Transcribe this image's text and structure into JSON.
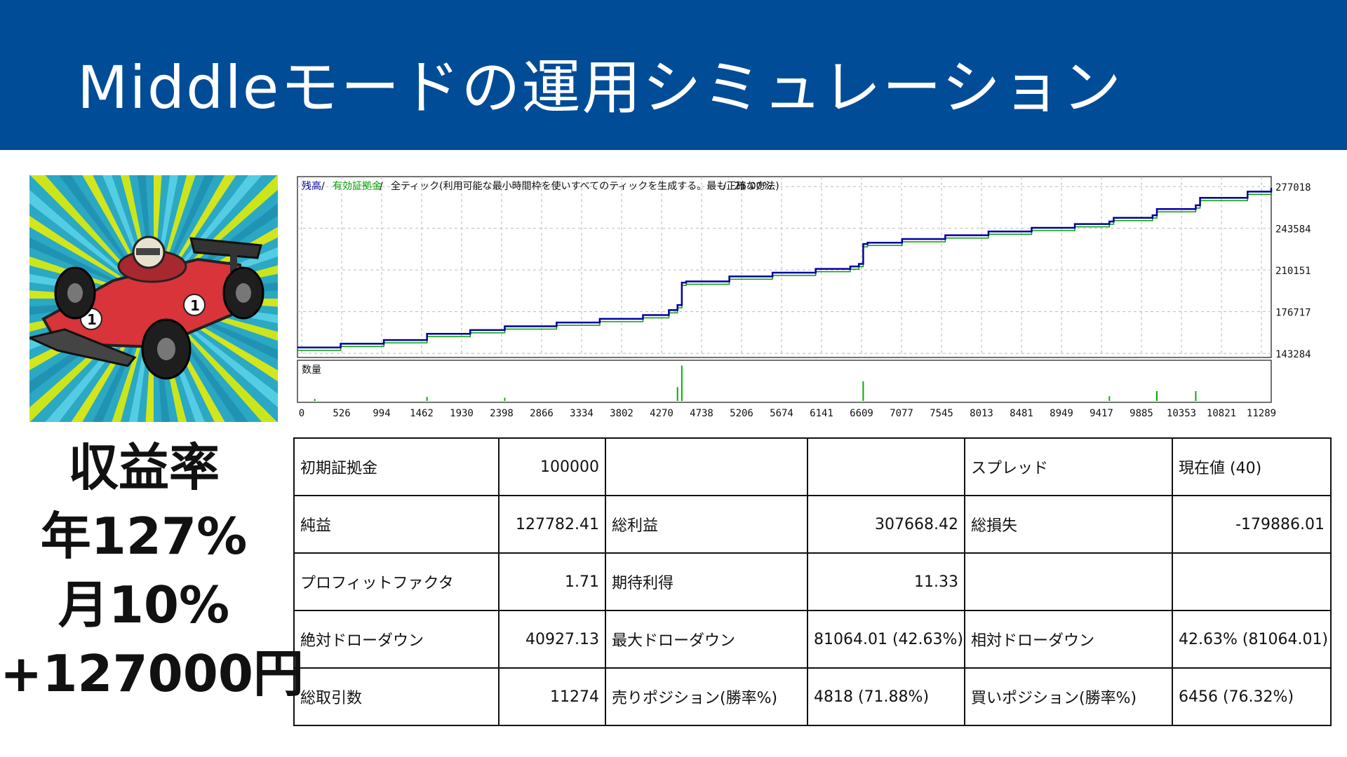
{
  "header": {
    "title": "Middleモードの運用シミュレーション"
  },
  "summary": {
    "line1": "収益率",
    "line2": "年127%",
    "line3": "月10%",
    "line4": "+127000円"
  },
  "colors": {
    "header_bg": "#004c97",
    "balance_line": "#0000a0",
    "equity_line": "#00b000",
    "volume_bar": "#00b000"
  },
  "icons": {
    "illustration": "race-car-driver-illustration"
  },
  "chart_data": {
    "type": "line",
    "legend": [
      "残高",
      "有効証拠金",
      "全ティック(利用可能な最小時間枠を使いすべてのティックを生成する。最も正確な方法)",
      "25.00%"
    ],
    "x_ticks": [
      "0",
      "526",
      "994",
      "1462",
      "1930",
      "2398",
      "2866",
      "3334",
      "3802",
      "4270",
      "4738",
      "5206",
      "5674",
      "6141",
      "6609",
      "7077",
      "7545",
      "8013",
      "8481",
      "8949",
      "9417",
      "9885",
      "10353",
      "10821",
      "11289"
    ],
    "y_ticks": [
      "277018",
      "243584",
      "210151",
      "176717",
      "143284"
    ],
    "ylim": [
      140000,
      285000
    ],
    "xlim": [
      0,
      11274
    ],
    "volume_label": "数量",
    "series": [
      {
        "name": "残高",
        "x": [
          0,
          500,
          1000,
          1500,
          2000,
          2400,
          3000,
          3500,
          4000,
          4300,
          4400,
          4450,
          4500,
          5000,
          5500,
          6000,
          6400,
          6500,
          6550,
          6600,
          7000,
          7500,
          8000,
          8500,
          9000,
          9400,
          9450,
          9900,
          9950,
          10400,
          10450,
          11000,
          11274
        ],
        "y": [
          148000,
          151000,
          154000,
          159000,
          162000,
          165000,
          168000,
          171000,
          174000,
          178000,
          182000,
          200000,
          201000,
          205000,
          208000,
          211000,
          213000,
          215000,
          231000,
          232000,
          235000,
          238000,
          241000,
          244000,
          247000,
          249000,
          252000,
          254000,
          259000,
          262000,
          268000,
          273000,
          276000
        ]
      }
    ],
    "volume_spikes_x": [
      200,
      1500,
      2400,
      4400,
      4450,
      6550,
      9400,
      9950,
      10400
    ],
    "volume_spikes_h": [
      0.05,
      0.1,
      0.08,
      0.35,
      0.9,
      0.5,
      0.12,
      0.25,
      0.25
    ]
  },
  "table": {
    "rows": [
      [
        "初期証拠金",
        "100000",
        "",
        "",
        "スプレッド",
        "現在値 (40)"
      ],
      [
        "純益",
        "127782.41",
        "総利益",
        "307668.42",
        "総損失",
        "-179886.01"
      ],
      [
        "プロフィットファクタ",
        "1.71",
        "期待利得",
        "11.33",
        "",
        ""
      ],
      [
        "絶対ドローダウン",
        "40927.13",
        "最大ドローダウン",
        "81064.01 (42.63%)",
        "相対ドローダウン",
        "42.63% (81064.01)"
      ],
      [
        "総取引数",
        "11274",
        "売りポジション(勝率%)",
        "4818 (71.88%)",
        "買いポジション(勝率%)",
        "6456 (76.32%)"
      ]
    ]
  }
}
